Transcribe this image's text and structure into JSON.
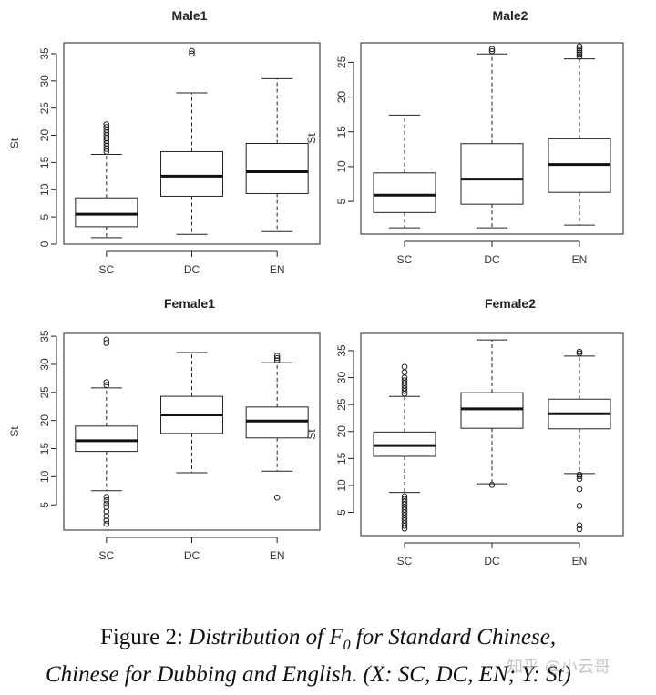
{
  "chart_data": [
    {
      "type": "box",
      "title": "Male1",
      "ylabel": "St",
      "categories": [
        "SC",
        "DC",
        "EN"
      ],
      "ylim": [
        0,
        37
      ],
      "yticks": [
        0,
        5,
        10,
        15,
        20,
        25,
        30,
        35
      ],
      "boxes": [
        {
          "category": "SC",
          "min": 1.2,
          "q1": 3.2,
          "median": 5.5,
          "q3": 8.5,
          "max": 16.5,
          "outliers": [
            17,
            17.5,
            18,
            18.5,
            19,
            19.5,
            20,
            20.5,
            21,
            21.5,
            22
          ]
        },
        {
          "category": "DC",
          "min": 1.8,
          "q1": 8.8,
          "median": 12.5,
          "q3": 17.0,
          "max": 27.8,
          "outliers": [
            35.0,
            35.5
          ]
        },
        {
          "category": "EN",
          "min": 2.3,
          "q1": 9.3,
          "median": 13.3,
          "q3": 18.5,
          "max": 30.4,
          "outliers": []
        }
      ]
    },
    {
      "type": "box",
      "title": "Male2",
      "ylabel": "St",
      "categories": [
        "SC",
        "DC",
        "EN"
      ],
      "ylim": [
        0.3,
        27.8
      ],
      "yticks": [
        5,
        10,
        15,
        20,
        25
      ],
      "boxes": [
        {
          "category": "SC",
          "min": 1.2,
          "q1": 3.4,
          "median": 5.9,
          "q3": 9.1,
          "max": 17.4,
          "outliers": []
        },
        {
          "category": "DC",
          "min": 1.2,
          "q1": 4.6,
          "median": 8.2,
          "q3": 13.3,
          "max": 26.2,
          "outliers": [
            26.6,
            26.9
          ]
        },
        {
          "category": "EN",
          "min": 1.6,
          "q1": 6.3,
          "median": 10.3,
          "q3": 14.0,
          "max": 25.5,
          "outliers": [
            25.8,
            26.1,
            26.4,
            26.7,
            27.0,
            27.3
          ]
        }
      ]
    },
    {
      "type": "box",
      "title": "Female1",
      "ylabel": "St",
      "categories": [
        "SC",
        "DC",
        "EN"
      ],
      "ylim": [
        0.5,
        35.5
      ],
      "yticks": [
        5,
        10,
        15,
        20,
        25,
        30,
        35
      ],
      "boxes": [
        {
          "category": "SC",
          "min": 7.5,
          "q1": 14.5,
          "median": 16.4,
          "q3": 19.0,
          "max": 25.8,
          "outliers": [
            1.6,
            2.2,
            3.0,
            3.8,
            4.6,
            5.2,
            5.8,
            6.4,
            26.3,
            26.8,
            33.8,
            34.4
          ]
        },
        {
          "category": "DC",
          "min": 10.7,
          "q1": 17.7,
          "median": 21.0,
          "q3": 24.3,
          "max": 32.1,
          "outliers": []
        },
        {
          "category": "EN",
          "min": 11.0,
          "q1": 16.9,
          "median": 19.9,
          "q3": 22.4,
          "max": 30.3,
          "outliers": [
            6.3,
            30.7,
            31.1,
            31.5
          ]
        }
      ]
    },
    {
      "type": "box",
      "title": "Female2",
      "ylabel": "St",
      "categories": [
        "SC",
        "DC",
        "EN"
      ],
      "ylim": [
        0.7,
        38.2
      ],
      "yticks": [
        5,
        10,
        15,
        20,
        25,
        30,
        35
      ],
      "boxes": [
        {
          "category": "SC",
          "min": 8.7,
          "q1": 15.4,
          "median": 17.4,
          "q3": 19.9,
          "max": 26.5,
          "outliers": [
            2.0,
            2.5,
            3.0,
            3.5,
            4.0,
            4.5,
            5.0,
            5.5,
            6.0,
            6.5,
            7.0,
            7.5,
            8.0,
            27.0,
            27.5,
            28.0,
            28.5,
            29.0,
            29.5,
            30.0,
            31.0,
            32.0
          ]
        },
        {
          "category": "DC",
          "min": 10.3,
          "q1": 20.6,
          "median": 24.2,
          "q3": 27.2,
          "max": 37.0,
          "outliers": [
            10.1
          ]
        },
        {
          "category": "EN",
          "min": 12.2,
          "q1": 20.5,
          "median": 23.3,
          "q3": 26.0,
          "max": 34.0,
          "outliers": [
            1.9,
            2.6,
            6.2,
            9.3,
            11.2,
            11.7,
            12.0,
            34.5,
            34.8
          ]
        }
      ]
    }
  ],
  "caption": {
    "prefix": "Figure 2: ",
    "line1_italic": "Distribution of ",
    "f0": "F",
    "f0_sub": "0",
    "line1_rest": " for Standard Chinese,",
    "line2": "Chinese for Dubbing and English. (X: SC, DC, EN; Y: St)"
  },
  "watermark": "知乎 @小云哥"
}
